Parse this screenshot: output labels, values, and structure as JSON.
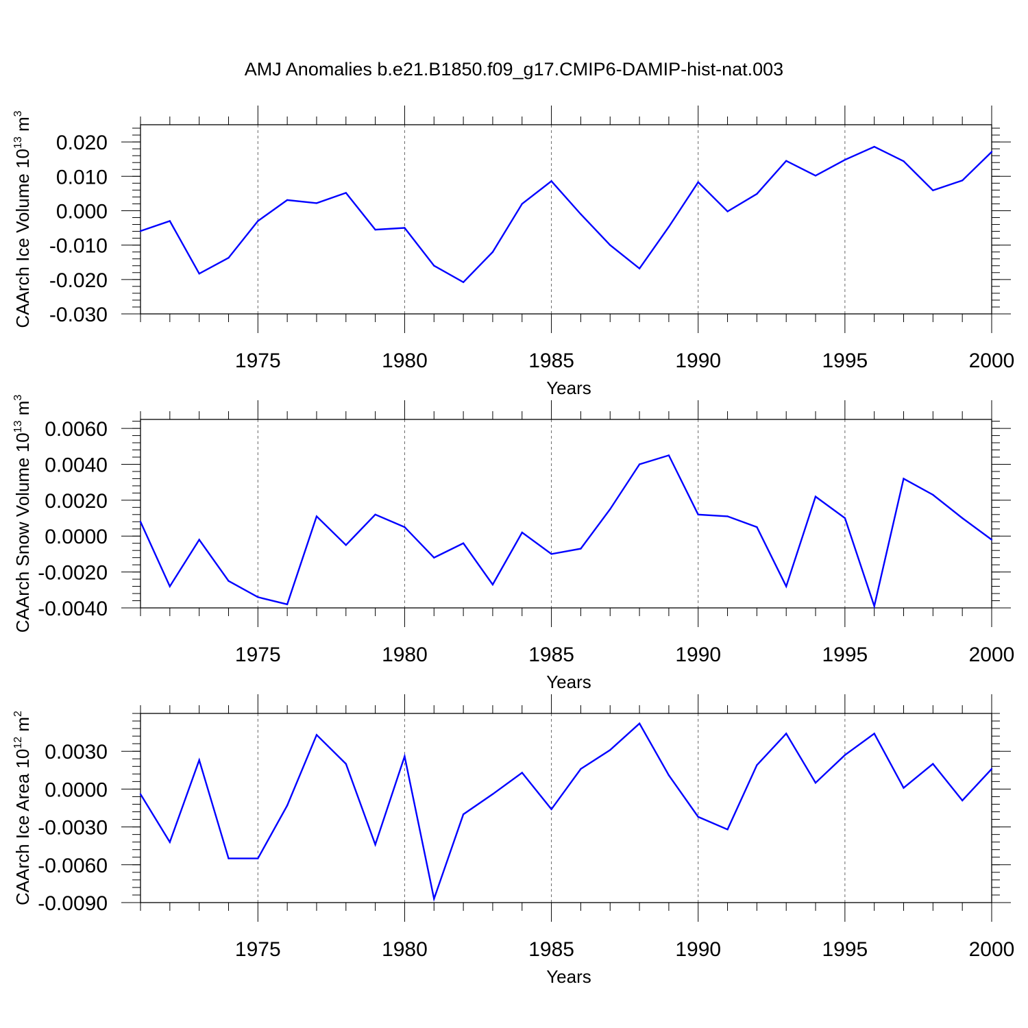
{
  "title": "AMJ Anomalies b.e21.B1850.f09_g17.CMIP6-DAMIP-hist-nat.003",
  "colors": {
    "line": "#0000ff",
    "axis": "#000000",
    "grid": "#666666"
  },
  "chart_data": [
    {
      "type": "line",
      "title": "AMJ Anomalies b.e21.B1850.f09_g17.CMIP6-DAMIP-hist-nat.003",
      "ylabel": {
        "main": "CAArch Ice Volume 10",
        "exp": "13",
        "unit": " m",
        "unit_exp": "3"
      },
      "xlabel": "Years",
      "xlim": [
        1971,
        2000
      ],
      "ylim": [
        -0.03,
        0.025
      ],
      "x_ticks": [
        1975,
        1980,
        1985,
        1990,
        1995,
        2000
      ],
      "x_tick_labels": [
        "1975",
        "1980",
        "1985",
        "1990",
        "1995",
        "2000"
      ],
      "y_ticks": [
        0.02,
        0.01,
        0.0,
        -0.01,
        -0.02,
        -0.03
      ],
      "y_tick_labels": [
        "0.020",
        "0.010",
        "0.000",
        "-0.010",
        "-0.020",
        "-0.030"
      ],
      "y_minor_step": 0.002,
      "grid": "vertical dashed at major x ticks",
      "x": [
        1971,
        1972,
        1973,
        1974,
        1975,
        1976,
        1977,
        1978,
        1979,
        1980,
        1981,
        1982,
        1983,
        1984,
        1985,
        1986,
        1987,
        1988,
        1989,
        1990,
        1991,
        1992,
        1993,
        1994,
        1995,
        1996,
        1997,
        1998,
        1999,
        2000
      ],
      "values": [
        -0.0059,
        -0.003,
        -0.0183,
        -0.0137,
        -0.003,
        0.0031,
        0.0022,
        0.0052,
        -0.0055,
        -0.005,
        -0.016,
        -0.0208,
        -0.012,
        0.002,
        0.0086,
        -0.001,
        -0.01,
        -0.0168,
        -0.0047,
        0.0083,
        -0.0002,
        0.0049,
        0.0145,
        0.0102,
        0.0148,
        0.0186,
        0.0144,
        0.0059,
        0.0088,
        0.0171
      ]
    },
    {
      "type": "line",
      "ylabel": {
        "main": "CAArch Snow Volume 10",
        "exp": "13",
        "unit": " m",
        "unit_exp": "3"
      },
      "xlabel": "Years",
      "xlim": [
        1971,
        2000
      ],
      "ylim": [
        -0.004,
        0.0065
      ],
      "x_ticks": [
        1975,
        1980,
        1985,
        1990,
        1995,
        2000
      ],
      "x_tick_labels": [
        "1975",
        "1980",
        "1985",
        "1990",
        "1995",
        "2000"
      ],
      "y_ticks": [
        0.006,
        0.004,
        0.002,
        0.0,
        -0.002,
        -0.004
      ],
      "y_tick_labels": [
        "0.0060",
        "0.0040",
        "0.0020",
        "0.0000",
        "-0.0020",
        "-0.0040"
      ],
      "y_minor_step": 0.0004,
      "grid": "vertical dashed at major x ticks",
      "x": [
        1971,
        1972,
        1973,
        1974,
        1975,
        1976,
        1977,
        1978,
        1979,
        1980,
        1981,
        1982,
        1983,
        1984,
        1985,
        1986,
        1987,
        1988,
        1989,
        1990,
        1991,
        1992,
        1993,
        1994,
        1995,
        1996,
        1997,
        1998,
        1999,
        2000
      ],
      "values": [
        0.0008,
        -0.0028,
        -0.0002,
        -0.0025,
        -0.0034,
        -0.0038,
        0.0011,
        -0.0005,
        0.0012,
        0.0005,
        -0.0012,
        -0.0004,
        -0.0027,
        0.0002,
        -0.001,
        -0.0007,
        0.0015,
        0.004,
        0.0045,
        0.0012,
        0.0011,
        0.0005,
        -0.0028,
        0.0022,
        0.001,
        -0.0039,
        0.0032,
        0.0023,
        0.001,
        -0.0002
      ]
    },
    {
      "type": "line",
      "ylabel": {
        "main": "CAArch Ice Area 10",
        "exp": "12",
        "unit": " m",
        "unit_exp": "2"
      },
      "xlabel": "Years",
      "xlim": [
        1971,
        2000
      ],
      "ylim": [
        -0.009,
        0.006
      ],
      "x_ticks": [
        1975,
        1980,
        1985,
        1990,
        1995,
        2000
      ],
      "x_tick_labels": [
        "1975",
        "1980",
        "1985",
        "1990",
        "1995",
        "2000"
      ],
      "y_ticks": [
        0.003,
        0.0,
        -0.003,
        -0.006,
        -0.009
      ],
      "y_tick_labels": [
        "0.0030",
        "0.0000",
        "-0.0030",
        "-0.0060",
        "-0.0090"
      ],
      "y_minor_step": 0.0006,
      "grid": "vertical dashed at major x ticks",
      "x": [
        1971,
        1972,
        1973,
        1974,
        1975,
        1976,
        1977,
        1978,
        1979,
        1980,
        1981,
        1982,
        1983,
        1984,
        1985,
        1986,
        1987,
        1988,
        1989,
        1990,
        1991,
        1992,
        1993,
        1994,
        1995,
        1996,
        1997,
        1998,
        1999,
        2000
      ],
      "values": [
        -0.0004,
        -0.0042,
        0.0023,
        -0.0055,
        -0.0055,
        -0.0013,
        0.0043,
        0.002,
        -0.0044,
        0.0026,
        -0.0087,
        -0.002,
        -0.0004,
        0.0013,
        -0.0016,
        0.0016,
        0.0031,
        0.0052,
        0.0011,
        -0.0022,
        -0.0032,
        0.0019,
        0.0044,
        0.0005,
        0.0027,
        0.0044,
        0.0001,
        0.002,
        -0.0009,
        0.0016
      ]
    }
  ]
}
